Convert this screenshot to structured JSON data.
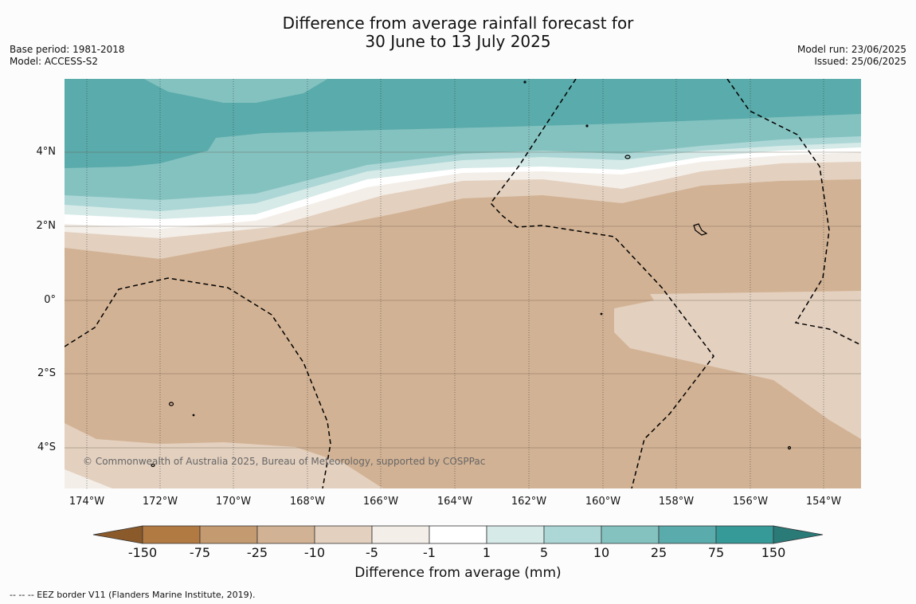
{
  "title": {
    "line1": "Difference from average rainfall forecast for",
    "line2": "30 June to 13 July 2025"
  },
  "meta": {
    "base_period": "Base period: 1981-2018",
    "model": "Model: ACCESS-S2",
    "model_run": "Model run: 23/06/2025",
    "issued": "Issued: 25/06/2025"
  },
  "map": {
    "lat_labels": [
      "4°N",
      "2°N",
      "0°",
      "2°S",
      "4°S"
    ],
    "lon_labels": [
      "174°W",
      "172°W",
      "170°W",
      "168°W",
      "166°W",
      "164°W",
      "162°W",
      "160°W",
      "158°W",
      "156°W",
      "154°W"
    ],
    "copyright": "© Commonwealth of Australia 2025, Bureau of Meteorology, supported by COSPPac"
  },
  "colorbar": {
    "labels": [
      "-150",
      "-75",
      "-25",
      "-10",
      "-5",
      "-1",
      "1",
      "5",
      "10",
      "25",
      "75",
      "150"
    ],
    "colors": [
      "#8a5a2b",
      "#b27a43",
      "#c49a70",
      "#d2b294",
      "#e3d0bf",
      "#f3eee8",
      "#ffffff",
      "#d6eae8",
      "#acd7d6",
      "#84c2c0",
      "#5aabab",
      "#369a98",
      "#2a7a78"
    ],
    "title": "Difference from average (mm)"
  },
  "legend": {
    "eez": "--  --  -- EEZ border V11 (Flanders Marine Institute, 2019)."
  }
}
